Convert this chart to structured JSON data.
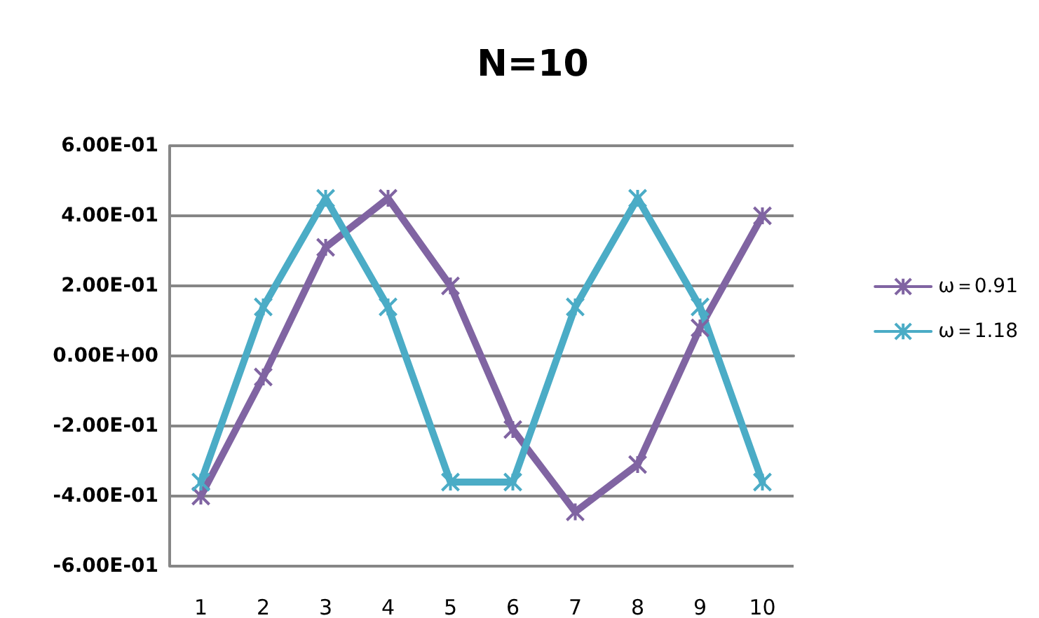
{
  "chart_data": {
    "type": "line",
    "title": "N=10",
    "categories": [
      "1",
      "2",
      "3",
      "4",
      "5",
      "6",
      "7",
      "8",
      "9",
      "10"
    ],
    "series": [
      {
        "name": "ω＝0.91",
        "color": "#8064a2",
        "marker": "cross",
        "values": [
          -0.4,
          -0.06,
          0.31,
          0.45,
          0.2,
          -0.21,
          -0.445,
          -0.31,
          0.08,
          0.4
        ]
      },
      {
        "name": "ω＝1.18",
        "color": "#4bacc6",
        "marker": "cross",
        "values": [
          -0.36,
          0.14,
          0.45,
          0.14,
          -0.36,
          -0.36,
          0.14,
          0.45,
          0.14,
          -0.36
        ]
      }
    ],
    "ylim": [
      -0.6,
      0.6
    ],
    "yticks": [
      {
        "value": -0.6,
        "label": "-6.00E-01"
      },
      {
        "value": -0.4,
        "label": "-4.00E-01"
      },
      {
        "value": -0.2,
        "label": "-2.00E-01"
      },
      {
        "value": 0,
        "label": "0.00E+00"
      },
      {
        "value": 0.2,
        "label": "2.00E-01"
      },
      {
        "value": 0.4,
        "label": "4.00E-01"
      },
      {
        "value": 0.6,
        "label": "6.00E-01"
      }
    ],
    "grid": "y",
    "legend": "right",
    "line_style": "solid"
  }
}
